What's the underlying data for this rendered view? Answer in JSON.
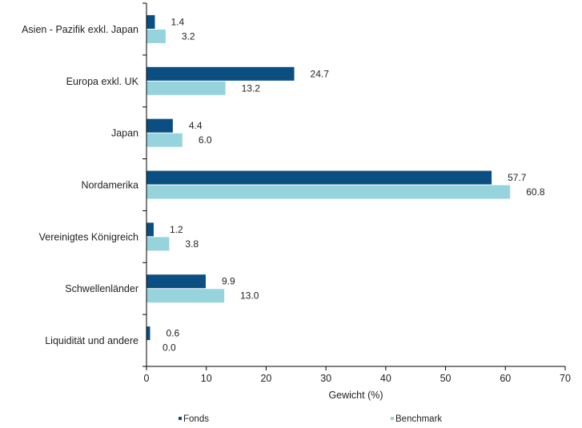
{
  "chart_data": {
    "type": "bar",
    "orientation": "horizontal",
    "categories": [
      "Asien - Pazifik exkl. Japan",
      "Europa exkl. UK",
      "Japan",
      "Nordamerika",
      "Vereinigtes Königreich",
      "Schwellenländer",
      "Liquidität und andere"
    ],
    "series": [
      {
        "name": "Fonds",
        "color": "#0b4f82",
        "values": [
          1.4,
          24.7,
          4.4,
          57.7,
          1.2,
          9.9,
          0.6
        ],
        "labels": [
          "1.4",
          "24.7",
          "4.4",
          "57.7",
          "1.2",
          "9.9",
          "0.6"
        ]
      },
      {
        "name": "Benchmark",
        "color": "#96d3dc",
        "values": [
          3.2,
          13.2,
          6.0,
          60.8,
          3.8,
          13.0,
          0.0
        ],
        "labels": [
          "3.2",
          "13.2",
          "6.0",
          "60.8",
          "3.8",
          "13.0",
          "0.0"
        ]
      }
    ],
    "xlabel": "Gewicht (%)",
    "xlim": [
      0,
      70
    ],
    "xticks": [
      "0",
      "10",
      "20",
      "30",
      "40",
      "50",
      "60",
      "70"
    ],
    "grid": false,
    "legend_position": "bottom"
  }
}
